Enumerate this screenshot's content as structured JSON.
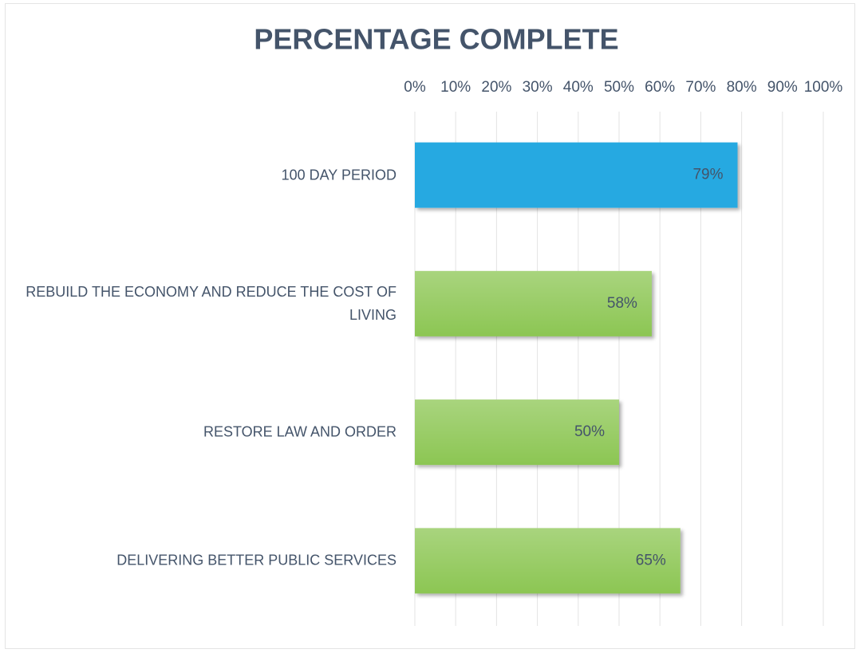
{
  "chart_data": {
    "type": "bar",
    "orientation": "horizontal",
    "title": "PERCENTAGE COMPLETE",
    "categories": [
      "100 DAY PERIOD",
      "REBUILD THE ECONOMY AND REDUCE THE COST OF LIVING",
      "RESTORE LAW AND ORDER",
      "DELIVERING BETTER PUBLIC SERVICES"
    ],
    "values": [
      79,
      58,
      50,
      65
    ],
    "value_labels": [
      "79%",
      "58%",
      "50%",
      "65%"
    ],
    "colors": [
      "#25a9e1",
      "#8cc653",
      "#8cc653",
      "#8cc653"
    ],
    "xlim": [
      0,
      100
    ],
    "xticks": [
      {
        "value": 0,
        "label": "0%"
      },
      {
        "value": 10,
        "label": "10%"
      },
      {
        "value": 20,
        "label": "20%"
      },
      {
        "value": 30,
        "label": "30%"
      },
      {
        "value": 40,
        "label": "40%"
      },
      {
        "value": 50,
        "label": "50%"
      },
      {
        "value": 60,
        "label": "60%"
      },
      {
        "value": 70,
        "label": "70%"
      },
      {
        "value": 80,
        "label": "80%"
      },
      {
        "value": 90,
        "label": "90%"
      },
      {
        "value": 100,
        "label": "100%"
      }
    ],
    "grid": true
  }
}
